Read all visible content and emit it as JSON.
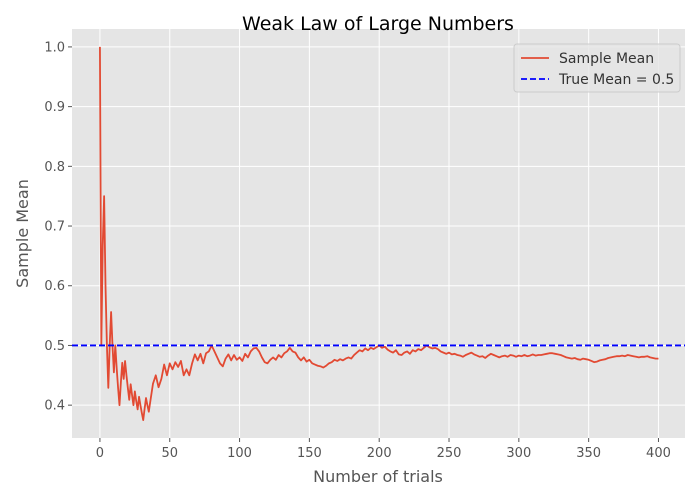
{
  "chart_data": {
    "type": "line",
    "title": "Weak Law of Large Numbers",
    "xlabel": "Number of trials",
    "ylabel": "Sample Mean",
    "xlim": [
      -20,
      419
    ],
    "ylim": [
      0.345,
      1.03
    ],
    "xticks": [
      0,
      50,
      100,
      150,
      200,
      250,
      300,
      350,
      400
    ],
    "yticks": [
      0.4,
      0.5,
      0.6,
      0.7,
      0.8,
      0.9,
      1.0
    ],
    "ytick_labels": [
      "0.4",
      "0.5",
      "0.6",
      "0.7",
      "0.8",
      "0.9",
      "1.0"
    ],
    "grid": true,
    "legend_position": "top-right",
    "series": [
      {
        "name": "Sample Mean",
        "color": "#E24A33",
        "style": "solid",
        "points": [
          [
            0,
            1.0
          ],
          [
            1,
            0.5
          ],
          [
            2,
            0.667
          ],
          [
            3,
            0.75
          ],
          [
            4,
            0.6
          ],
          [
            5,
            0.5
          ],
          [
            6,
            0.429
          ],
          [
            7,
            0.5
          ],
          [
            8,
            0.556
          ],
          [
            9,
            0.5
          ],
          [
            10,
            0.455
          ],
          [
            11,
            0.5
          ],
          [
            12,
            0.462
          ],
          [
            13,
            0.429
          ],
          [
            14,
            0.4
          ],
          [
            15,
            0.438
          ],
          [
            16,
            0.471
          ],
          [
            17,
            0.444
          ],
          [
            18,
            0.474
          ],
          [
            19,
            0.45
          ],
          [
            20,
            0.429
          ],
          [
            21,
            0.409
          ],
          [
            22,
            0.435
          ],
          [
            23,
            0.417
          ],
          [
            24,
            0.4
          ],
          [
            25,
            0.423
          ],
          [
            26,
            0.407
          ],
          [
            27,
            0.393
          ],
          [
            28,
            0.414
          ],
          [
            29,
            0.4
          ],
          [
            30,
            0.387
          ],
          [
            31,
            0.375
          ],
          [
            32,
            0.394
          ],
          [
            33,
            0.412
          ],
          [
            34,
            0.4
          ],
          [
            35,
            0.389
          ],
          [
            36,
            0.405
          ],
          [
            38,
            0.436
          ],
          [
            40,
            0.45
          ],
          [
            42,
            0.43
          ],
          [
            44,
            0.444
          ],
          [
            46,
            0.468
          ],
          [
            48,
            0.45
          ],
          [
            50,
            0.47
          ],
          [
            52,
            0.46
          ],
          [
            54,
            0.472
          ],
          [
            56,
            0.464
          ],
          [
            58,
            0.474
          ],
          [
            60,
            0.45
          ],
          [
            62,
            0.46
          ],
          [
            64,
            0.45
          ],
          [
            66,
            0.47
          ],
          [
            68,
            0.485
          ],
          [
            70,
            0.475
          ],
          [
            72,
            0.486
          ],
          [
            74,
            0.47
          ],
          [
            76,
            0.487
          ],
          [
            78,
            0.49
          ],
          [
            80,
            0.5
          ],
          [
            82,
            0.49
          ],
          [
            84,
            0.48
          ],
          [
            86,
            0.47
          ],
          [
            88,
            0.465
          ],
          [
            90,
            0.478
          ],
          [
            92,
            0.485
          ],
          [
            94,
            0.475
          ],
          [
            96,
            0.484
          ],
          [
            98,
            0.476
          ],
          [
            100,
            0.48
          ],
          [
            102,
            0.474
          ],
          [
            104,
            0.486
          ],
          [
            106,
            0.48
          ],
          [
            108,
            0.49
          ],
          [
            110,
            0.495
          ],
          [
            112,
            0.496
          ],
          [
            114,
            0.49
          ],
          [
            116,
            0.48
          ],
          [
            118,
            0.472
          ],
          [
            120,
            0.47
          ],
          [
            122,
            0.476
          ],
          [
            124,
            0.48
          ],
          [
            126,
            0.476
          ],
          [
            128,
            0.484
          ],
          [
            130,
            0.48
          ],
          [
            132,
            0.487
          ],
          [
            134,
            0.49
          ],
          [
            136,
            0.496
          ],
          [
            138,
            0.49
          ],
          [
            140,
            0.488
          ],
          [
            142,
            0.48
          ],
          [
            144,
            0.475
          ],
          [
            146,
            0.48
          ],
          [
            148,
            0.473
          ],
          [
            150,
            0.476
          ],
          [
            152,
            0.47
          ],
          [
            154,
            0.468
          ],
          [
            156,
            0.466
          ],
          [
            158,
            0.465
          ],
          [
            160,
            0.463
          ],
          [
            162,
            0.466
          ],
          [
            164,
            0.47
          ],
          [
            166,
            0.472
          ],
          [
            168,
            0.476
          ],
          [
            170,
            0.474
          ],
          [
            172,
            0.477
          ],
          [
            174,
            0.475
          ],
          [
            176,
            0.478
          ],
          [
            178,
            0.48
          ],
          [
            180,
            0.478
          ],
          [
            182,
            0.484
          ],
          [
            184,
            0.488
          ],
          [
            186,
            0.492
          ],
          [
            188,
            0.49
          ],
          [
            190,
            0.495
          ],
          [
            192,
            0.492
          ],
          [
            194,
            0.496
          ],
          [
            196,
            0.494
          ],
          [
            198,
            0.497
          ],
          [
            200,
            0.5
          ],
          [
            202,
            0.496
          ],
          [
            204,
            0.498
          ],
          [
            206,
            0.493
          ],
          [
            208,
            0.49
          ],
          [
            210,
            0.488
          ],
          [
            212,
            0.492
          ],
          [
            214,
            0.485
          ],
          [
            216,
            0.484
          ],
          [
            218,
            0.488
          ],
          [
            220,
            0.49
          ],
          [
            222,
            0.486
          ],
          [
            224,
            0.492
          ],
          [
            226,
            0.49
          ],
          [
            228,
            0.494
          ],
          [
            230,
            0.492
          ],
          [
            232,
            0.496
          ],
          [
            234,
            0.5
          ],
          [
            236,
            0.497
          ],
          [
            238,
            0.495
          ],
          [
            240,
            0.496
          ],
          [
            242,
            0.494
          ],
          [
            244,
            0.49
          ],
          [
            246,
            0.488
          ],
          [
            248,
            0.486
          ],
          [
            250,
            0.488
          ],
          [
            252,
            0.485
          ],
          [
            254,
            0.486
          ],
          [
            256,
            0.484
          ],
          [
            258,
            0.483
          ],
          [
            260,
            0.481
          ],
          [
            262,
            0.484
          ],
          [
            264,
            0.486
          ],
          [
            266,
            0.488
          ],
          [
            268,
            0.485
          ],
          [
            270,
            0.483
          ],
          [
            272,
            0.481
          ],
          [
            274,
            0.482
          ],
          [
            276,
            0.479
          ],
          [
            278,
            0.483
          ],
          [
            280,
            0.486
          ],
          [
            282,
            0.484
          ],
          [
            284,
            0.482
          ],
          [
            286,
            0.48
          ],
          [
            288,
            0.482
          ],
          [
            290,
            0.483
          ],
          [
            292,
            0.481
          ],
          [
            294,
            0.484
          ],
          [
            296,
            0.483
          ],
          [
            298,
            0.481
          ],
          [
            300,
            0.483
          ],
          [
            302,
            0.482
          ],
          [
            304,
            0.484
          ],
          [
            306,
            0.482
          ],
          [
            308,
            0.483
          ],
          [
            310,
            0.485
          ],
          [
            312,
            0.483
          ],
          [
            314,
            0.484
          ],
          [
            316,
            0.484
          ],
          [
            318,
            0.485
          ],
          [
            320,
            0.486
          ],
          [
            322,
            0.487
          ],
          [
            324,
            0.487
          ],
          [
            326,
            0.486
          ],
          [
            328,
            0.485
          ],
          [
            330,
            0.484
          ],
          [
            332,
            0.482
          ],
          [
            334,
            0.48
          ],
          [
            336,
            0.479
          ],
          [
            338,
            0.478
          ],
          [
            340,
            0.479
          ],
          [
            342,
            0.477
          ],
          [
            344,
            0.476
          ],
          [
            346,
            0.478
          ],
          [
            348,
            0.477
          ],
          [
            350,
            0.476
          ],
          [
            352,
            0.474
          ],
          [
            354,
            0.472
          ],
          [
            356,
            0.473
          ],
          [
            358,
            0.475
          ],
          [
            360,
            0.476
          ],
          [
            362,
            0.477
          ],
          [
            364,
            0.479
          ],
          [
            366,
            0.48
          ],
          [
            368,
            0.481
          ],
          [
            370,
            0.482
          ],
          [
            372,
            0.482
          ],
          [
            374,
            0.483
          ],
          [
            376,
            0.482
          ],
          [
            378,
            0.484
          ],
          [
            380,
            0.483
          ],
          [
            382,
            0.482
          ],
          [
            384,
            0.481
          ],
          [
            386,
            0.48
          ],
          [
            388,
            0.481
          ],
          [
            390,
            0.481
          ],
          [
            392,
            0.482
          ],
          [
            394,
            0.48
          ],
          [
            396,
            0.479
          ],
          [
            398,
            0.478
          ],
          [
            400,
            0.478
          ]
        ]
      },
      {
        "name": "True Mean = 0.5",
        "color": "#0000FF",
        "style": "dashed",
        "y": 0.5
      }
    ]
  }
}
